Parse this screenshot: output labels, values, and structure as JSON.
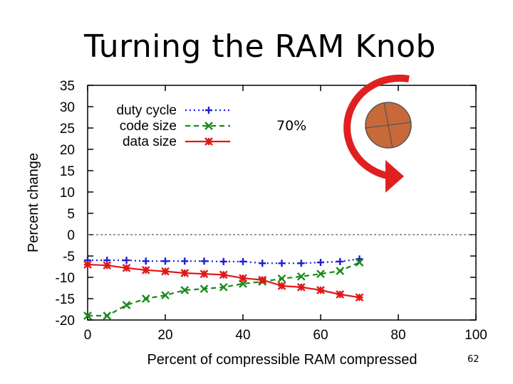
{
  "slide": {
    "title": "Turning the RAM Knob",
    "page_number": "62"
  },
  "chart_data": {
    "type": "line",
    "title": "",
    "xlabel": "Percent of compressible RAM compressed",
    "ylabel": "Percent change",
    "xlim": [
      0,
      100
    ],
    "ylim": [
      -20,
      35
    ],
    "xticks": [
      0,
      20,
      40,
      60,
      80,
      100
    ],
    "yticks": [
      -20,
      -15,
      -10,
      -5,
      0,
      5,
      10,
      15,
      20,
      25,
      30,
      35
    ],
    "legend_position": "top-left",
    "reference_line": 0,
    "annotation": "70%",
    "colors": {
      "duty": "#1f1fd6",
      "code": "#1a8a1a",
      "data": "#e01818",
      "knob": "#c8693a",
      "arrow": "#e02020"
    },
    "series": [
      {
        "name": "duty cycle",
        "marker": "+",
        "style": "dotted",
        "x": [
          0,
          5,
          10,
          15,
          20,
          25,
          30,
          35,
          40,
          45,
          50,
          55,
          60,
          65,
          70
        ],
        "values": [
          -6,
          -6,
          -6,
          -6.2,
          -6.2,
          -6.2,
          -6.2,
          -6.3,
          -6.3,
          -6.7,
          -6.7,
          -6.7,
          -6.5,
          -6.3,
          -5.7
        ]
      },
      {
        "name": "code size",
        "marker": "x",
        "style": "dashed",
        "x": [
          0,
          5,
          10,
          15,
          20,
          25,
          30,
          35,
          40,
          45,
          50,
          55,
          60,
          65,
          70
        ],
        "values": [
          -19,
          -19,
          -16.5,
          -15,
          -14.2,
          -13,
          -12.7,
          -12.3,
          -11.5,
          -11,
          -10.3,
          -9.8,
          -9.2,
          -8.5,
          -6.5
        ]
      },
      {
        "name": "data size",
        "marker": "*",
        "style": "solid",
        "x": [
          0,
          5,
          10,
          15,
          20,
          25,
          30,
          35,
          40,
          45,
          50,
          55,
          60,
          65,
          70
        ],
        "values": [
          -7,
          -7.2,
          -7.8,
          -8.3,
          -8.6,
          -9,
          -9.2,
          -9.4,
          -10.2,
          -10.6,
          -12,
          -12.3,
          -13,
          -14,
          -14.7
        ]
      }
    ]
  }
}
